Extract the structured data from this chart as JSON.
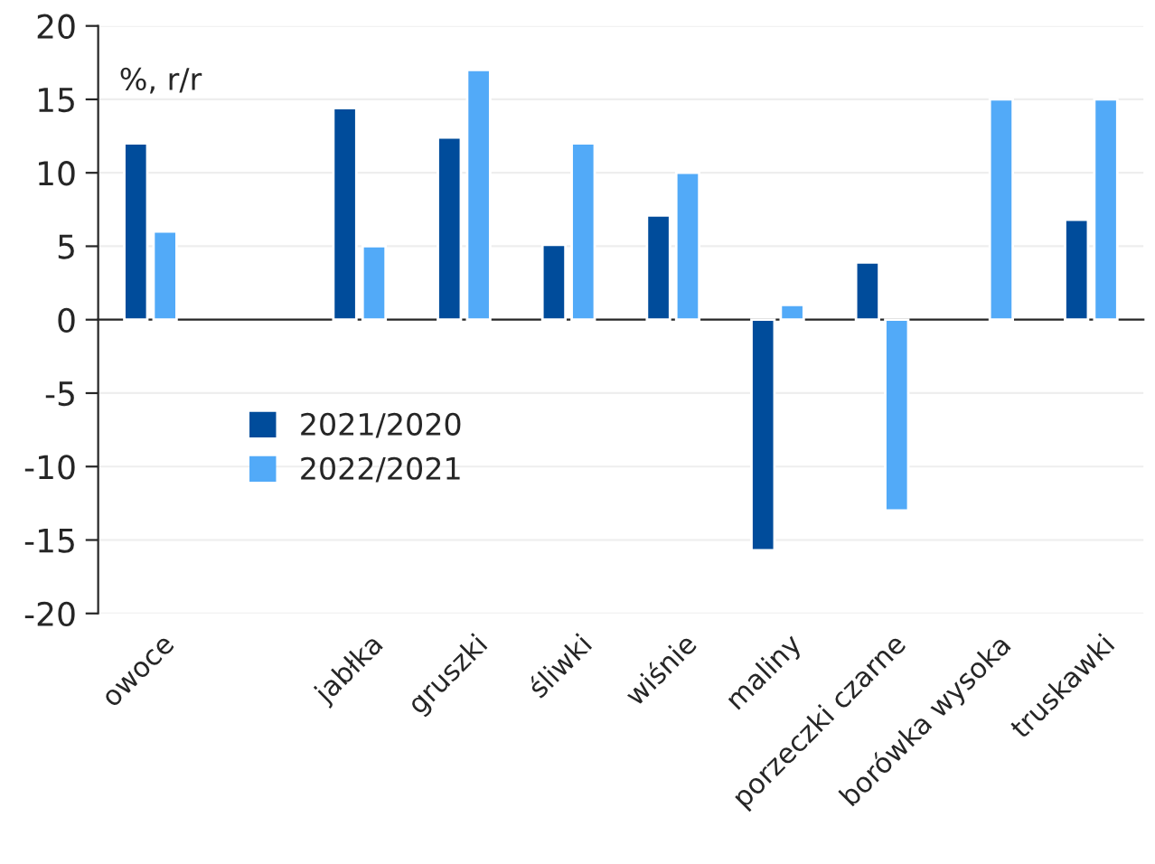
{
  "chart_data": {
    "type": "bar",
    "categories": [
      "owoce",
      null,
      "jabłka",
      "gruszki",
      "śliwki",
      "wiśnie",
      "maliny",
      "porzeczki czarne",
      "borówka wysoka",
      "truskawki"
    ],
    "series": [
      {
        "name": "2021/2020",
        "color": "#004c9b",
        "values": [
          12,
          null,
          14.4,
          12.4,
          5.1,
          7.1,
          -15.7,
          3.9,
          null,
          6.8
        ]
      },
      {
        "name": "2022/2021",
        "color": "#52aaf8",
        "values": [
          6,
          null,
          5,
          17,
          12,
          10,
          1,
          -13,
          15,
          15
        ]
      }
    ],
    "annotations": [
      "%, r/r"
    ],
    "ylim": [
      -20,
      20
    ],
    "yticks": [
      -20,
      -15,
      -10,
      -5,
      0,
      5,
      10,
      15,
      20
    ],
    "grid": "y",
    "legend": "center left"
  }
}
